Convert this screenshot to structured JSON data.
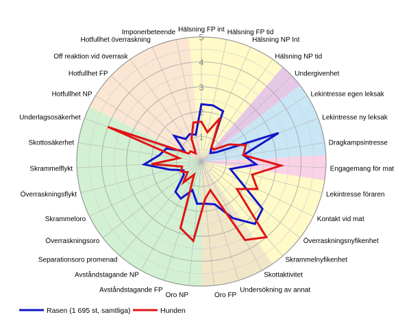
{
  "chart_data": {
    "type": "radar",
    "title": "",
    "r_range": [
      0,
      5
    ],
    "r_ticks": [
      1,
      2,
      3,
      4,
      5
    ],
    "r_tick_labels": [
      "1",
      "2",
      "3",
      "4",
      "5"
    ],
    "categories": [
      "Hälsning FP int",
      "Hälsning FP tid",
      "Hälsning NP Int",
      "Hälsning NP tid",
      "Undergivenhet",
      "Lekintresse egen leksak",
      "Lekintresse ny leksak",
      "Dragkampsintresse",
      "Engagemang för mat",
      "Lekintresse föraren",
      "Kontakt vid mat",
      "Överraskningsnyfikenhet",
      "Skrammelnyfikenhet",
      "Skottaktivitet",
      "Undersökning av annat",
      "Oro FP",
      "Oro NP",
      "Avståndstagande FP",
      "Avståndstagande NP",
      "Separationsoro promenad",
      "Överraskningsoro",
      "Skrammeloro",
      "Överraskningsflykt",
      "Skrammelflykt",
      "Skottosäkerhet",
      "Underlagsosäkerhet",
      "Hotfullhet NP",
      "Hotfullhet FP",
      "Off reaktion vid överrask",
      "Hotfullhet överraskning",
      "Imponerbeteende"
    ],
    "series": [
      {
        "name": "Rasen (1 695 st, samtliga)",
        "color": "#1414c8",
        "values": [
          2.3,
          2.3,
          2.2,
          0.7,
          0.5,
          0.7,
          3.3,
          1.7,
          2.2,
          1.2,
          1.7,
          3.1,
          3.3,
          2.6,
          1.8,
          1.7,
          1.7,
          1.2,
          1.7,
          1.6,
          0.9,
          0.8,
          1.3,
          2.3,
          1.7,
          1.5,
          0.8,
          1.5,
          1.1,
          1.2,
          1.1
        ]
      },
      {
        "name": "Hunden",
        "color": "#e01414",
        "values": [
          1.6,
          1.2,
          1.9,
          0.7,
          0.7,
          1.3,
          1.9,
          1.7,
          3.2,
          2.1,
          2.5,
          1.8,
          4.0,
          3.6,
          1.2,
          1.5,
          3.2,
          2.8,
          0.6,
          1.1,
          0.7,
          0.9,
          0.8,
          2.0,
          0.9,
          4.0,
          0.6,
          0.6,
          0.4,
          1.0,
          1.6
        ]
      }
    ],
    "sectors": [
      {
        "from": 0,
        "to": 3,
        "color": "#fffac8"
      },
      {
        "from": 4,
        "to": 4,
        "color": "#e6c8e6"
      },
      {
        "from": 5,
        "to": 7,
        "color": "#c8e6f5"
      },
      {
        "from": 8,
        "to": 8,
        "color": "#fad2e6"
      },
      {
        "from": 9,
        "to": 12,
        "color": "#fffac8"
      },
      {
        "from": 13,
        "to": 15,
        "color": "#f0e6c8"
      },
      {
        "from": 16,
        "to": 25,
        "color": "#d2f0d2"
      },
      {
        "from": 26,
        "to": 30,
        "color": "#fae6d2"
      }
    ],
    "legend_position": "bottom-left"
  }
}
